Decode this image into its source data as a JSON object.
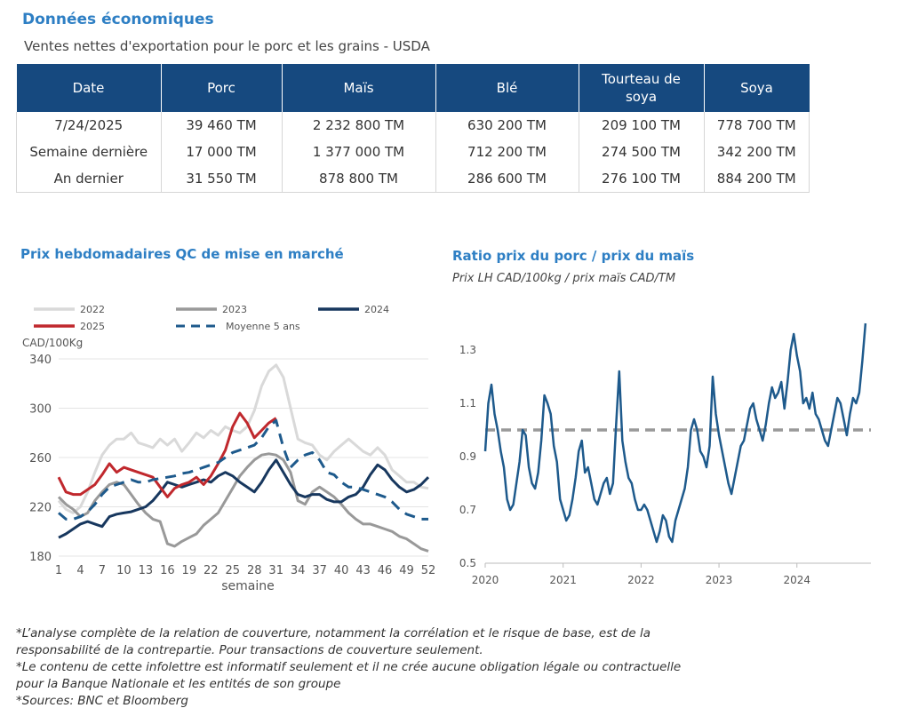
{
  "header": {
    "title": "Données économiques",
    "subtitle": "Ventes nettes d'exportation pour le porc et les grains - USDA"
  },
  "table": {
    "columns": [
      "Date",
      "Porc",
      "Maïs",
      "Blé",
      "Tourteau de soya",
      "Soya"
    ],
    "rows": [
      [
        "7/24/2025",
        "39 460 TM",
        "2 232 800 TM",
        "630 200 TM",
        "209 100 TM",
        "778 700 TM"
      ],
      [
        "Semaine dernière",
        "17 000 TM",
        "1 377 000 TM",
        "712 200 TM",
        "274 500 TM",
        "342 200 TM"
      ],
      [
        "An dernier",
        "31 550 TM",
        "878 800 TM",
        "286 600 TM",
        "276 100 TM",
        "884 200 TM"
      ]
    ]
  },
  "chart_data": [
    {
      "type": "line",
      "title": "Prix hebdomadaires QC de mise en marché",
      "ylabel": "CAD/100Kg",
      "xlabel": "semaine",
      "ylim": [
        180,
        340
      ],
      "xlim": [
        1,
        52
      ],
      "y_ticks": [
        180,
        220,
        260,
        300,
        340
      ],
      "x_ticks": [
        1,
        4,
        7,
        10,
        13,
        16,
        19,
        22,
        25,
        28,
        31,
        34,
        37,
        40,
        43,
        46,
        49,
        52
      ],
      "grid": "horizontal",
      "legend_position": "top-left",
      "series": [
        {
          "name": "2022",
          "color": "#d9d9d9",
          "dashed": false,
          "x": [
            1,
            2,
            3,
            4,
            5,
            6,
            7,
            8,
            9,
            10,
            11,
            12,
            13,
            14,
            15,
            16,
            17,
            18,
            19,
            20,
            21,
            22,
            23,
            24,
            25,
            26,
            27,
            28,
            29,
            30,
            31,
            32,
            33,
            34,
            35,
            36,
            37,
            38,
            39,
            40,
            41,
            42,
            43,
            44,
            45,
            46,
            47,
            48,
            49,
            50,
            51,
            52
          ],
          "values": [
            225,
            218,
            215,
            220,
            232,
            248,
            262,
            270,
            275,
            275,
            280,
            272,
            270,
            268,
            275,
            270,
            275,
            265,
            272,
            280,
            276,
            282,
            278,
            285,
            282,
            280,
            285,
            298,
            318,
            330,
            335,
            325,
            300,
            275,
            272,
            270,
            262,
            258,
            265,
            270,
            275,
            270,
            265,
            262,
            268,
            262,
            250,
            245,
            240,
            240,
            236,
            235
          ]
        },
        {
          "name": "2023",
          "color": "#999999",
          "dashed": false,
          "x": [
            1,
            2,
            3,
            4,
            5,
            6,
            7,
            8,
            9,
            10,
            11,
            12,
            13,
            14,
            15,
            16,
            17,
            18,
            19,
            20,
            21,
            22,
            23,
            24,
            25,
            26,
            27,
            28,
            29,
            30,
            31,
            32,
            33,
            34,
            35,
            36,
            37,
            38,
            39,
            40,
            41,
            42,
            43,
            44,
            45,
            46,
            47,
            48,
            49,
            50,
            51,
            52
          ],
          "values": [
            228,
            222,
            218,
            212,
            215,
            225,
            232,
            238,
            240,
            238,
            230,
            222,
            215,
            210,
            208,
            190,
            188,
            192,
            195,
            198,
            205,
            210,
            215,
            225,
            235,
            245,
            252,
            258,
            262,
            263,
            262,
            258,
            248,
            225,
            222,
            232,
            236,
            232,
            228,
            222,
            215,
            210,
            206,
            206,
            204,
            202,
            200,
            196,
            194,
            190,
            186,
            184
          ]
        },
        {
          "name": "2024",
          "color": "#17375e",
          "dashed": false,
          "x": [
            1,
            2,
            3,
            4,
            5,
            6,
            7,
            8,
            9,
            10,
            11,
            12,
            13,
            14,
            15,
            16,
            17,
            18,
            19,
            20,
            21,
            22,
            23,
            24,
            25,
            26,
            27,
            28,
            29,
            30,
            31,
            32,
            33,
            34,
            35,
            36,
            37,
            38,
            39,
            40,
            41,
            42,
            43,
            44,
            45,
            46,
            47,
            48,
            49,
            50,
            51,
            52
          ],
          "values": [
            195,
            198,
            202,
            206,
            208,
            206,
            204,
            212,
            214,
            215,
            216,
            218,
            220,
            225,
            232,
            240,
            238,
            236,
            238,
            240,
            242,
            240,
            245,
            248,
            245,
            240,
            236,
            232,
            240,
            250,
            258,
            248,
            238,
            230,
            228,
            230,
            230,
            226,
            224,
            224,
            228,
            230,
            236,
            246,
            254,
            250,
            242,
            236,
            232,
            234,
            238,
            244
          ]
        },
        {
          "name": "2025",
          "color": "#c0282d",
          "dashed": false,
          "x": [
            1,
            2,
            3,
            4,
            5,
            6,
            7,
            8,
            9,
            10,
            11,
            12,
            13,
            14,
            15,
            16,
            17,
            18,
            19,
            20,
            21,
            22,
            23,
            24,
            25,
            26,
            27,
            28,
            29,
            30,
            31
          ],
          "values": [
            244,
            232,
            230,
            230,
            234,
            238,
            246,
            255,
            248,
            252,
            250,
            248,
            246,
            244,
            236,
            228,
            235,
            238,
            240,
            244,
            238,
            245,
            255,
            266,
            285,
            296,
            288,
            276,
            282,
            288,
            292
          ]
        },
        {
          "name": "Moyenne 5 ans",
          "color": "#1e5a8c",
          "dashed": true,
          "x": [
            1,
            2,
            3,
            4,
            5,
            6,
            7,
            8,
            9,
            10,
            11,
            12,
            13,
            14,
            15,
            16,
            17,
            18,
            19,
            20,
            21,
            22,
            23,
            24,
            25,
            26,
            27,
            28,
            29,
            30,
            31,
            32,
            33,
            34,
            35,
            36,
            37,
            38,
            39,
            40,
            41,
            42,
            43,
            44,
            45,
            46,
            47,
            48,
            49,
            50,
            51,
            52
          ],
          "values": [
            215,
            210,
            210,
            212,
            216,
            222,
            230,
            236,
            238,
            240,
            242,
            240,
            240,
            242,
            243,
            244,
            245,
            247,
            248,
            250,
            252,
            254,
            256,
            260,
            264,
            266,
            268,
            270,
            276,
            285,
            290,
            268,
            252,
            258,
            262,
            264,
            258,
            248,
            246,
            240,
            236,
            236,
            234,
            232,
            230,
            228,
            224,
            218,
            214,
            212,
            210,
            210
          ]
        }
      ]
    },
    {
      "type": "line",
      "title": "Ratio prix du porc / prix du maïs",
      "subtitle": "Prix LH CAD/100kg / prix maïs CAD/TM",
      "ylim": [
        0.5,
        1.4
      ],
      "y_ticks": [
        0.5,
        0.7,
        0.9,
        1.1,
        1.3
      ],
      "x_tick_labels": [
        "2020",
        "2021",
        "2022",
        "2023",
        "2024"
      ],
      "x_range_years": [
        2020,
        2024.9
      ],
      "reference_line": {
        "value": 1.0,
        "color": "#999999",
        "dashed": true
      },
      "series": [
        {
          "name": "",
          "color": "#1e5a8c",
          "x": [
            2020.0,
            2020.04,
            2020.08,
            2020.12,
            2020.16,
            2020.2,
            2020.24,
            2020.28,
            2020.32,
            2020.36,
            2020.4,
            2020.44,
            2020.48,
            2020.52,
            2020.56,
            2020.6,
            2020.64,
            2020.68,
            2020.72,
            2020.76,
            2020.8,
            2020.84,
            2020.88,
            2020.92,
            2020.96,
            2021.0,
            2021.04,
            2021.08,
            2021.12,
            2021.16,
            2021.2,
            2021.24,
            2021.28,
            2021.32,
            2021.36,
            2021.4,
            2021.44,
            2021.48,
            2021.52,
            2021.56,
            2021.6,
            2021.64,
            2021.68,
            2021.72,
            2021.76,
            2021.8,
            2021.84,
            2021.88,
            2021.92,
            2021.96,
            2022.0,
            2022.04,
            2022.08,
            2022.12,
            2022.16,
            2022.2,
            2022.24,
            2022.28,
            2022.32,
            2022.36,
            2022.4,
            2022.44,
            2022.48,
            2022.52,
            2022.56,
            2022.6,
            2022.64,
            2022.68,
            2022.72,
            2022.76,
            2022.8,
            2022.84,
            2022.88,
            2022.92,
            2022.96,
            2023.0,
            2023.04,
            2023.08,
            2023.12,
            2023.16,
            2023.2,
            2023.24,
            2023.28,
            2023.32,
            2023.36,
            2023.4,
            2023.44,
            2023.48,
            2023.52,
            2023.56,
            2023.6,
            2023.64,
            2023.68,
            2023.72,
            2023.76,
            2023.8,
            2023.84,
            2023.88,
            2023.92,
            2023.96,
            2024.0,
            2024.04,
            2024.08,
            2024.12,
            2024.16,
            2024.2,
            2024.24,
            2024.28,
            2024.32,
            2024.36,
            2024.4,
            2024.44,
            2024.48,
            2024.52,
            2024.56,
            2024.6,
            2024.64,
            2024.68,
            2024.72,
            2024.76,
            2024.8,
            2024.84,
            2024.88
          ],
          "values": [
            0.92,
            1.1,
            1.17,
            1.06,
            1.0,
            0.92,
            0.86,
            0.74,
            0.7,
            0.72,
            0.8,
            0.88,
            1.0,
            0.98,
            0.86,
            0.8,
            0.78,
            0.84,
            0.96,
            1.13,
            1.1,
            1.06,
            0.94,
            0.88,
            0.74,
            0.7,
            0.66,
            0.68,
            0.74,
            0.82,
            0.92,
            0.96,
            0.84,
            0.86,
            0.8,
            0.74,
            0.72,
            0.76,
            0.8,
            0.82,
            0.76,
            0.8,
            1.02,
            1.22,
            0.96,
            0.88,
            0.82,
            0.8,
            0.74,
            0.7,
            0.7,
            0.72,
            0.7,
            0.66,
            0.62,
            0.58,
            0.62,
            0.68,
            0.66,
            0.6,
            0.58,
            0.66,
            0.7,
            0.74,
            0.78,
            0.86,
            1.0,
            1.04,
            1.0,
            0.92,
            0.9,
            0.86,
            0.94,
            1.2,
            1.06,
            0.98,
            0.92,
            0.86,
            0.8,
            0.76,
            0.82,
            0.88,
            0.94,
            0.96,
            1.02,
            1.08,
            1.1,
            1.04,
            1.0,
            0.96,
            1.02,
            1.1,
            1.16,
            1.12,
            1.14,
            1.18,
            1.08,
            1.18,
            1.3,
            1.36,
            1.28,
            1.22,
            1.1,
            1.12,
            1.08,
            1.14,
            1.06,
            1.04,
            1.0,
            0.96,
            0.94,
            1.0,
            1.06,
            1.12,
            1.1,
            1.04,
            0.98,
            1.06,
            1.12,
            1.1,
            1.14,
            1.26,
            1.4
          ]
        }
      ]
    }
  ],
  "footnotes": [
    "*L’analyse complète de la relation de couverture, notamment la corrélation et le risque de base, est de la",
    "responsabilité de la contrepartie. Pour transactions de couverture seulement.",
    "*Le contenu de cette infolettre est informatif seulement et il ne crée aucune obligation légale ou contractuelle",
    "pour la Banque Nationale et les entités de son groupe",
    "*Sources: BNC et Bloomberg"
  ]
}
